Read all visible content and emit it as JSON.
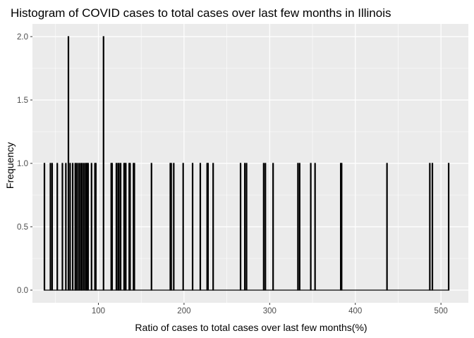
{
  "chart_data": {
    "type": "histogram",
    "title": "Histogram of COVID cases to total cases over last few months in Illinois",
    "xlabel": "Ratio of cases to total cases over last few months(%)",
    "ylabel": "Frequency",
    "xlim": [
      23,
      532
    ],
    "ylim": [
      -0.1,
      2.1
    ],
    "x_ticks": [
      100,
      200,
      300,
      400,
      500
    ],
    "y_ticks": [
      0.0,
      0.5,
      1.0,
      1.5,
      2.0
    ],
    "y_tick_labels": [
      "0.0",
      "0.5",
      "1.0",
      "1.5",
      "2.0"
    ],
    "grid": true,
    "range": [
      37,
      509
    ],
    "bar_outline_color": "#000000",
    "panel_color": "#ebebeb",
    "grid_color": "#ffffff",
    "bars": [
      {
        "x": 37,
        "count": 1
      },
      {
        "x": 44,
        "count": 1
      },
      {
        "x": 46,
        "count": 1
      },
      {
        "x": 52,
        "count": 1
      },
      {
        "x": 58,
        "count": 1
      },
      {
        "x": 62,
        "count": 1
      },
      {
        "x": 65,
        "count": 2
      },
      {
        "x": 67,
        "count": 1
      },
      {
        "x": 70,
        "count": 1
      },
      {
        "x": 73,
        "count": 1
      },
      {
        "x": 74,
        "count": 1
      },
      {
        "x": 76,
        "count": 1
      },
      {
        "x": 78,
        "count": 1
      },
      {
        "x": 80,
        "count": 1
      },
      {
        "x": 81,
        "count": 1
      },
      {
        "x": 83,
        "count": 1
      },
      {
        "x": 85,
        "count": 1
      },
      {
        "x": 86,
        "count": 1
      },
      {
        "x": 87,
        "count": 1
      },
      {
        "x": 88,
        "count": 1
      },
      {
        "x": 92,
        "count": 1
      },
      {
        "x": 96,
        "count": 1
      },
      {
        "x": 97,
        "count": 1
      },
      {
        "x": 106,
        "count": 2
      },
      {
        "x": 115,
        "count": 1
      },
      {
        "x": 116,
        "count": 1
      },
      {
        "x": 121,
        "count": 1
      },
      {
        "x": 123,
        "count": 1
      },
      {
        "x": 124,
        "count": 1
      },
      {
        "x": 126,
        "count": 1
      },
      {
        "x": 130,
        "count": 1
      },
      {
        "x": 131,
        "count": 1
      },
      {
        "x": 132,
        "count": 1
      },
      {
        "x": 136,
        "count": 1
      },
      {
        "x": 137,
        "count": 1
      },
      {
        "x": 141,
        "count": 1
      },
      {
        "x": 142,
        "count": 1
      },
      {
        "x": 162,
        "count": 1
      },
      {
        "x": 184,
        "count": 1
      },
      {
        "x": 185,
        "count": 1
      },
      {
        "x": 188,
        "count": 1
      },
      {
        "x": 199,
        "count": 1
      },
      {
        "x": 210,
        "count": 1
      },
      {
        "x": 219,
        "count": 1
      },
      {
        "x": 227,
        "count": 1
      },
      {
        "x": 228,
        "count": 1
      },
      {
        "x": 234,
        "count": 1
      },
      {
        "x": 266,
        "count": 1
      },
      {
        "x": 271,
        "count": 1
      },
      {
        "x": 273,
        "count": 1
      },
      {
        "x": 293,
        "count": 1
      },
      {
        "x": 295,
        "count": 1
      },
      {
        "x": 304,
        "count": 1
      },
      {
        "x": 333,
        "count": 1
      },
      {
        "x": 335,
        "count": 1
      },
      {
        "x": 348,
        "count": 1
      },
      {
        "x": 353,
        "count": 1
      },
      {
        "x": 383,
        "count": 1
      },
      {
        "x": 384,
        "count": 1
      },
      {
        "x": 437,
        "count": 1
      },
      {
        "x": 487,
        "count": 1
      },
      {
        "x": 490,
        "count": 1
      },
      {
        "x": 509,
        "count": 1
      }
    ]
  }
}
